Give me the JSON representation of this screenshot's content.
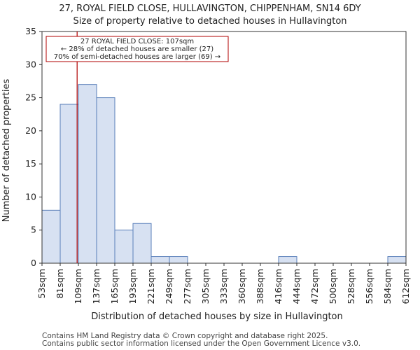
{
  "chart_data": {
    "type": "bar",
    "title": "27, ROYAL FIELD CLOSE, HULLAVINGTON, CHIPPENHAM, SN14 6DY",
    "subtitle": "Size of property relative to detached houses in Hullavington",
    "xlabel": "Distribution of detached houses by size in Hullavington",
    "ylabel": "Number of detached properties",
    "ylim": [
      0,
      35
    ],
    "yticks": [
      0,
      5,
      10,
      15,
      20,
      25,
      30,
      35
    ],
    "bin_edges": [
      "53sqm",
      "81sqm",
      "109sqm",
      "137sqm",
      "165sqm",
      "193sqm",
      "221sqm",
      "249sqm",
      "277sqm",
      "305sqm",
      "333sqm",
      "360sqm",
      "388sqm",
      "416sqm",
      "444sqm",
      "472sqm",
      "500sqm",
      "528sqm",
      "556sqm",
      "584sqm",
      "612sqm"
    ],
    "values": [
      8,
      24,
      27,
      25,
      5,
      6,
      1,
      1,
      0,
      0,
      0,
      0,
      0,
      1,
      0,
      0,
      0,
      0,
      0,
      1
    ],
    "marker": {
      "value_bin_position": 1.93,
      "lines": [
        "27 ROYAL FIELD CLOSE: 107sqm",
        "← 28% of detached houses are smaller (27)",
        "70% of semi-detached houses are larger (69) →"
      ]
    },
    "colors": {
      "bar_fill": "#d7e1f2",
      "bar_stroke": "#5a7fba",
      "marker": "#b00000"
    }
  },
  "footer": {
    "line1": "Contains HM Land Registry data © Crown copyright and database right 2025.",
    "line2": "Contains public sector information licensed under the Open Government Licence v3.0."
  }
}
